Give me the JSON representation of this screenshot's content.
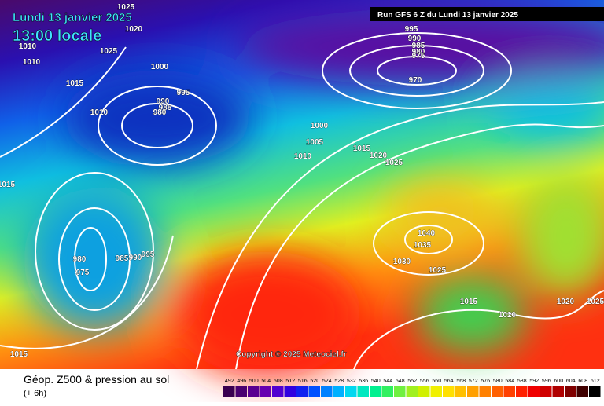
{
  "header": {
    "date": "Lundi 13 janvier 2025",
    "time": "13:00 locale",
    "run": "Run GFS 6 Z du Lundi 13 janvier 2025"
  },
  "copyright": "Copyright © 2025 Meteociel.fr",
  "footer": {
    "title": "Géop. Z500 & pression au sol",
    "step": "(+ 6h)"
  },
  "scale": {
    "labels": [
      "492",
      "496",
      "500",
      "504",
      "508",
      "512",
      "516",
      "520",
      "524",
      "528",
      "532",
      "536",
      "540",
      "544",
      "548",
      "552",
      "556",
      "560",
      "564",
      "568",
      "572",
      "576",
      "580",
      "584",
      "588",
      "592",
      "596",
      "600",
      "604",
      "608",
      "612"
    ]
  },
  "isobars": {
    "labels": [
      "1025",
      "1020",
      "1010",
      "1010",
      "1025",
      "1015",
      "1000",
      "995",
      "990",
      "985",
      "980",
      "1010",
      "995",
      "990",
      "985",
      "980",
      "975",
      "970",
      "1000",
      "1005",
      "1010",
      "1015",
      "1020",
      "1025",
      "1015",
      "980",
      "975",
      "985",
      "990",
      "995",
      "1040",
      "1035",
      "1030",
      "1025",
      "1015",
      "1020",
      "1020",
      "1025",
      "1015"
    ]
  }
}
